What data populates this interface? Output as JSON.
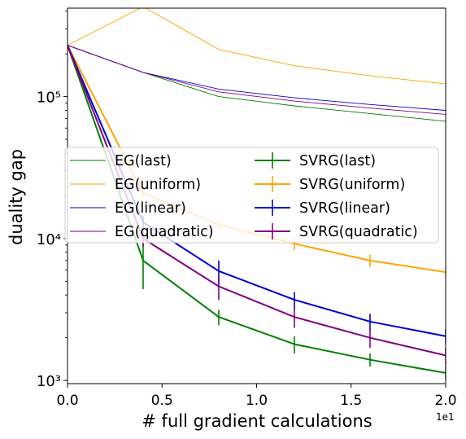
{
  "chart_data": {
    "type": "line",
    "xlabel": "# full gradient calculations",
    "ylabel": "duality gap",
    "x_offset_label": "1e1",
    "xlim": [
      0,
      20
    ],
    "ylim": [
      950,
      420000
    ],
    "y_scale": "log",
    "x_ticks": [
      0,
      5,
      10,
      15,
      20
    ],
    "x_tick_labels": [
      "0.0",
      "0.5",
      "1.0",
      "1.5",
      "2.0"
    ],
    "y_ticks": [
      1000,
      10000,
      100000
    ],
    "y_tick_labels": [
      "10³",
      "10⁴",
      "10⁵"
    ],
    "legend_position": "center",
    "grid": false,
    "series": [
      {
        "name": "EG(last)",
        "style": "thin",
        "color": "#008000",
        "x": [
          0,
          4,
          8,
          12,
          16,
          20
        ],
        "values": [
          230000,
          148000,
          100000,
          86000,
          76000,
          67000
        ]
      },
      {
        "name": "EG(uniform)",
        "style": "thin",
        "color": "#FFA500",
        "x": [
          0,
          4,
          8,
          12,
          16,
          20
        ],
        "values": [
          230000,
          430000,
          215000,
          165000,
          140000,
          123000
        ]
      },
      {
        "name": "EG(linear)",
        "style": "thin",
        "color": "#0000CD",
        "x": [
          0,
          4,
          8,
          12,
          16,
          20
        ],
        "values": [
          230000,
          148000,
          113000,
          98000,
          88000,
          80000
        ]
      },
      {
        "name": "EG(quadratic)",
        "style": "thin",
        "color": "#800080",
        "x": [
          0,
          4,
          8,
          12,
          16,
          20
        ],
        "values": [
          230000,
          148000,
          108000,
          93000,
          83000,
          75000
        ]
      },
      {
        "name": "SVRG(last)",
        "style": "errorbar",
        "color": "#008000",
        "x": [
          0,
          4,
          8,
          12,
          16,
          20
        ],
        "values": [
          230000,
          7000,
          2800,
          1800,
          1400,
          1130
        ],
        "errors": [
          0,
          2600,
          350,
          250,
          150,
          120
        ]
      },
      {
        "name": "SVRG(uniform)",
        "style": "errorbar",
        "color": "#FFA500",
        "x": [
          0,
          4,
          8,
          12,
          16,
          20
        ],
        "values": [
          230000,
          21000,
          12500,
          9200,
          7000,
          5800
        ],
        "errors": [
          0,
          1500,
          1000,
          900,
          700,
          500
        ]
      },
      {
        "name": "SVRG(linear)",
        "style": "errorbar",
        "color": "#0000CD",
        "x": [
          0,
          4,
          8,
          12,
          16,
          20
        ],
        "values": [
          230000,
          13000,
          5900,
          3700,
          2600,
          2050
        ],
        "errors": [
          0,
          1500,
          1100,
          500,
          350,
          250
        ]
      },
      {
        "name": "SVRG(quadratic)",
        "style": "errorbar",
        "color": "#800080",
        "x": [
          0,
          4,
          8,
          12,
          16,
          20
        ],
        "values": [
          230000,
          10000,
          4600,
          2800,
          2000,
          1500
        ],
        "errors": [
          0,
          1200,
          900,
          450,
          300,
          200
        ]
      }
    ]
  }
}
